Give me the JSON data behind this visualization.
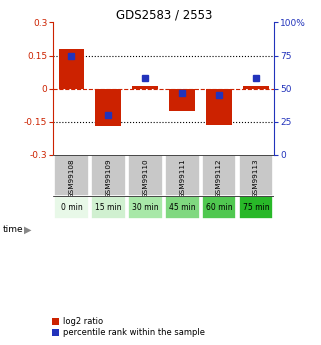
{
  "title": "GDS2583 / 2553",
  "samples": [
    "GSM99108",
    "GSM99109",
    "GSM99110",
    "GSM99111",
    "GSM99112",
    "GSM99113"
  ],
  "time_labels": [
    "0 min",
    "15 min",
    "30 min",
    "45 min",
    "60 min",
    "75 min"
  ],
  "log2_ratios": [
    0.18,
    -0.17,
    0.01,
    -0.1,
    -0.165,
    0.01
  ],
  "percentile_ranks": [
    75,
    30,
    58,
    47,
    45,
    58
  ],
  "bar_color": "#cc2200",
  "dot_color": "#2233bb",
  "ylim_left": [
    -0.3,
    0.3
  ],
  "ylim_right": [
    0,
    100
  ],
  "yticks_left": [
    -0.3,
    -0.15,
    0,
    0.15,
    0.3
  ],
  "yticks_right": [
    0,
    25,
    50,
    75,
    100
  ],
  "bg_color": "#ffffff",
  "sample_bg": "#c8c8c8",
  "time_colors": [
    "#e8f8e8",
    "#d0f0d0",
    "#a8e8a8",
    "#80d880",
    "#50c850",
    "#28b828"
  ],
  "legend_items": [
    "log2 ratio",
    "percentile rank within the sample"
  ]
}
